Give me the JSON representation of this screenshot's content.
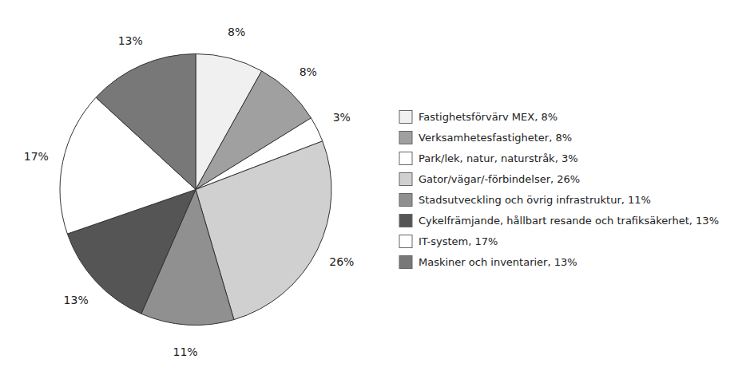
{
  "chart_data": {
    "type": "pie",
    "categories": [
      "Fastighetsförvärv MEX, 8%",
      "Verksamhetesfastigheter, 8%",
      "Park/lek, natur, naturstråk, 3%",
      "Gator/vägar/-förbindelser, 26%",
      "Stadsutveckling och övrig infrastruktur, 11%",
      "Cykelfrämjande, hållbart resande och trafiksäkerhet, 13%",
      "IT-system, 17%",
      "Maskiner och inventarier, 13%"
    ],
    "values": [
      8,
      8,
      3,
      26,
      11,
      13,
      17,
      13
    ],
    "value_labels": [
      "8%",
      "8%",
      "3%",
      "26%",
      "11%",
      "13%",
      "17%",
      "13%"
    ],
    "colors": [
      "#f0f0f0",
      "#a0a0a0",
      "#ffffff",
      "#d0d0d0",
      "#909090",
      "#555555",
      "#ffffff",
      "#787878"
    ],
    "data_labels": true,
    "legend": "right"
  }
}
